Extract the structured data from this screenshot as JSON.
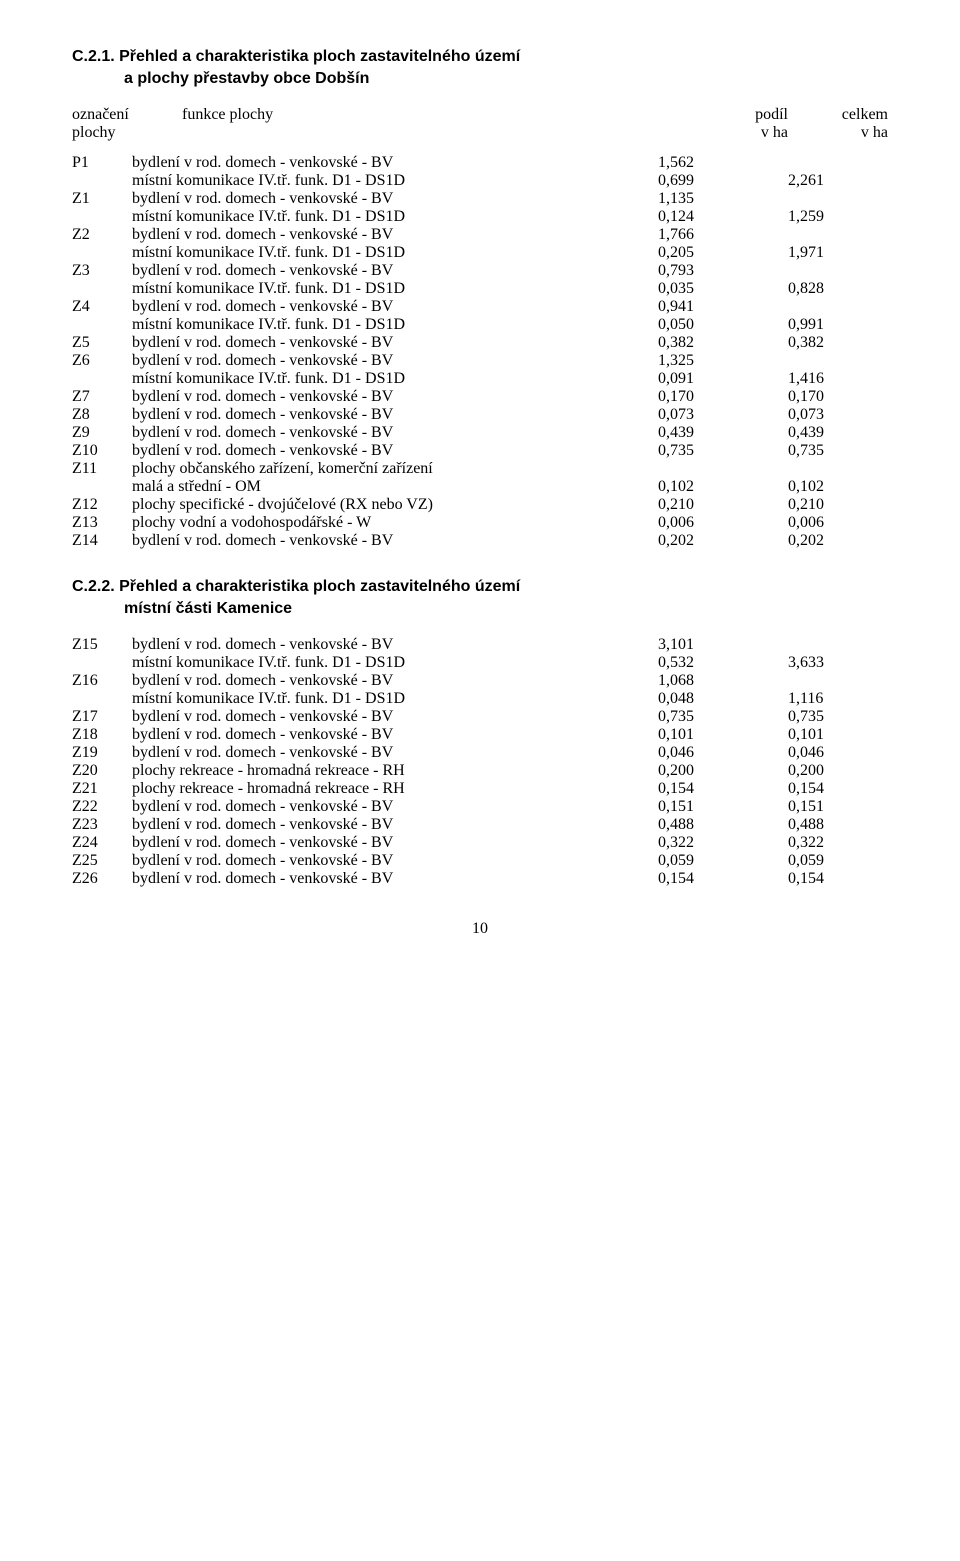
{
  "section1": {
    "heading_line1": "C.2.1. Přehled a charakteristika ploch zastavitelného území",
    "heading_line2": "a plochy přestavby obce Dobšín",
    "header_row1": {
      "c1": "označení",
      "c2": "funkce plochy",
      "c3": "podíl",
      "c4": "celkem"
    },
    "header_row2": {
      "c1": "plochy",
      "c2": "",
      "c3": "v ha",
      "c4": "v ha"
    },
    "rows": [
      {
        "id": "P1",
        "lines": [
          {
            "text": "bydlení v rod. domech - venkovské - BV",
            "v1": "1,562",
            "v2": ""
          },
          {
            "text": "místní komunikace IV.tř. funk. D1 - DS1D",
            "v1": "0,699",
            "v2": "2,261"
          }
        ]
      },
      {
        "id": "Z1",
        "lines": [
          {
            "text": "bydlení v rod. domech - venkovské - BV",
            "v1": "1,135",
            "v2": ""
          },
          {
            "text": "místní komunikace IV.tř. funk. D1 - DS1D",
            "v1": "0,124",
            "v2": "1,259"
          }
        ]
      },
      {
        "id": "Z2",
        "lines": [
          {
            "text": "bydlení v rod. domech - venkovské - BV",
            "v1": "1,766",
            "v2": ""
          },
          {
            "text": "místní komunikace IV.tř. funk. D1 - DS1D",
            "v1": "0,205",
            "v2": "1,971"
          }
        ]
      },
      {
        "id": "Z3",
        "lines": [
          {
            "text": "bydlení v rod. domech - venkovské - BV",
            "v1": "0,793",
            "v2": ""
          },
          {
            "text": "místní komunikace IV.tř. funk. D1 - DS1D",
            "v1": "0,035",
            "v2": "0,828"
          }
        ]
      },
      {
        "id": "Z4",
        "lines": [
          {
            "text": "bydlení v rod. domech - venkovské - BV",
            "v1": "0,941",
            "v2": ""
          },
          {
            "text": "místní komunikace IV.tř. funk. D1 - DS1D",
            "v1": "0,050",
            "v2": "0,991"
          }
        ]
      },
      {
        "id": "Z5",
        "lines": [
          {
            "text": "bydlení v rod. domech - venkovské - BV",
            "v1": "0,382",
            "v2": "0,382"
          }
        ]
      },
      {
        "id": "Z6",
        "lines": [
          {
            "text": "bydlení v rod. domech - venkovské - BV",
            "v1": "1,325",
            "v2": ""
          },
          {
            "text": "místní komunikace IV.tř. funk. D1 - DS1D",
            "v1": "0,091",
            "v2": "1,416"
          }
        ]
      },
      {
        "id": "Z7",
        "lines": [
          {
            "text": "bydlení v rod. domech - venkovské - BV",
            "v1": "0,170",
            "v2": "0,170"
          }
        ]
      },
      {
        "id": "Z8",
        "lines": [
          {
            "text": "bydlení v rod. domech - venkovské - BV",
            "v1": "0,073",
            "v2": "0,073"
          }
        ]
      },
      {
        "id": "Z9",
        "lines": [
          {
            "text": "bydlení v rod. domech - venkovské - BV",
            "v1": "0,439",
            "v2": "0,439"
          }
        ]
      },
      {
        "id": "Z10",
        "lines": [
          {
            "text": "bydlení v rod. domech - venkovské - BV",
            "v1": "0,735",
            "v2": "0,735"
          }
        ]
      },
      {
        "id": "Z11",
        "lines": [
          {
            "text": "plochy občanského zařízení, komerční zařízení",
            "v1": "",
            "v2": ""
          },
          {
            "text": "malá a střední - OM",
            "v1": "0,102",
            "v2": "0,102"
          }
        ]
      },
      {
        "id": "Z12",
        "lines": [
          {
            "text": "plochy specifické - dvojúčelové (RX nebo VZ)",
            "v1": "0,210",
            "v2": "0,210"
          }
        ]
      },
      {
        "id": "Z13",
        "lines": [
          {
            "text": "plochy vodní a vodohospodářské - W",
            "v1": "0,006",
            "v2": "0,006"
          }
        ]
      },
      {
        "id": "Z14",
        "lines": [
          {
            "text": "bydlení v rod. domech - venkovské - BV",
            "v1": "0,202",
            "v2": "0,202"
          }
        ]
      }
    ]
  },
  "section2": {
    "heading_line1": "C.2.2. Přehled a charakteristika ploch zastavitelného území",
    "heading_line2": "místní části Kamenice",
    "rows": [
      {
        "id": "Z15",
        "lines": [
          {
            "text": "bydlení v rod. domech - venkovské - BV",
            "v1": "3,101",
            "v2": ""
          },
          {
            "text": "místní komunikace IV.tř. funk. D1 - DS1D",
            "v1": "0,532",
            "v2": "3,633"
          }
        ]
      },
      {
        "id": "Z16",
        "lines": [
          {
            "text": "bydlení v rod. domech - venkovské - BV",
            "v1": "1,068",
            "v2": ""
          },
          {
            "text": "místní komunikace IV.tř. funk. D1 - DS1D",
            "v1": "0,048",
            "v2": "1,116"
          }
        ]
      },
      {
        "id": "Z17",
        "lines": [
          {
            "text": "bydlení v rod. domech - venkovské - BV",
            "v1": "0,735",
            "v2": "0,735"
          }
        ]
      },
      {
        "id": "Z18",
        "lines": [
          {
            "text": "bydlení v rod. domech - venkovské - BV",
            "v1": "0,101",
            "v2": "0,101"
          }
        ]
      },
      {
        "id": "Z19",
        "lines": [
          {
            "text": "bydlení v rod. domech - venkovské - BV",
            "v1": "0,046",
            "v2": "0,046"
          }
        ]
      },
      {
        "id": "Z20",
        "lines": [
          {
            "text": "plochy rekreace - hromadná rekreace - RH",
            "v1": "0,200",
            "v2": "0,200"
          }
        ]
      },
      {
        "id": "Z21",
        "lines": [
          {
            "text": "plochy rekreace - hromadná rekreace - RH",
            "v1": "0,154",
            "v2": "0,154"
          }
        ]
      },
      {
        "id": "Z22",
        "lines": [
          {
            "text": "bydlení v rod. domech - venkovské - BV",
            "v1": "0,151",
            "v2": "0,151"
          }
        ]
      },
      {
        "id": "Z23",
        "lines": [
          {
            "text": "bydlení v rod. domech - venkovské - BV",
            "v1": "0,488",
            "v2": "0,488"
          }
        ]
      },
      {
        "id": "Z24",
        "lines": [
          {
            "text": "bydlení v rod. domech - venkovské - BV",
            "v1": "0,322",
            "v2": "0,322"
          }
        ]
      },
      {
        "id": "Z25",
        "lines": [
          {
            "text": "bydlení v rod. domech - venkovské - BV",
            "v1": "0,059",
            "v2": "0,059"
          }
        ]
      },
      {
        "id": "Z26",
        "lines": [
          {
            "text": "bydlení v rod. domech - venkovské - BV",
            "v1": "0,154",
            "v2": "0,154"
          }
        ]
      }
    ]
  },
  "page_number": "10"
}
